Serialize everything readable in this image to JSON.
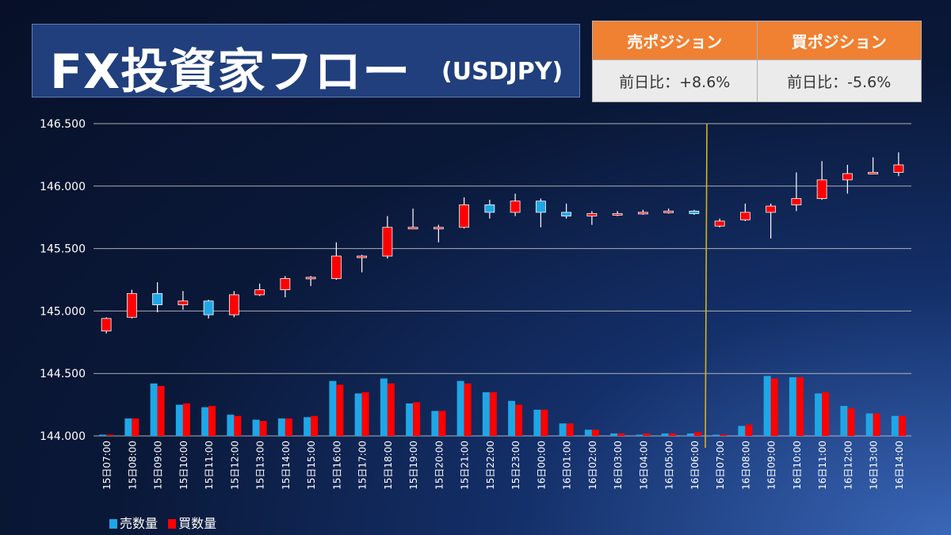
{
  "header": {
    "title": "FX投資家フロー",
    "pair": "(USDJPY)"
  },
  "positions": {
    "sell_label": "売ポジション",
    "sell_change": "前日比：+8.6%",
    "buy_label": "買ポジション",
    "buy_change": "前日比：-5.6%"
  },
  "colors": {
    "up": "#ff0000",
    "down": "#1ea7e6",
    "sell_volume": "#1ea7e6",
    "buy_volume": "#ff0000",
    "divider": "#d7b21c",
    "grid": "#c8c8c8",
    "position_header": "#f08032"
  },
  "chart_data": {
    "type": "candlestick",
    "ylim": [
      144.0,
      146.5
    ],
    "yticks": [
      "146.500",
      "146.000",
      "145.500",
      "145.000",
      "144.500",
      "144.000"
    ],
    "ytick_values": [
      146.5,
      146.0,
      145.5,
      145.0,
      144.5,
      144.0
    ],
    "grid": true,
    "legend_position": "bottom-left",
    "divider_after_category": "16日06:00",
    "categories": [
      "15日07:00",
      "15日08:00",
      "15日09:00",
      "15日10:00",
      "15日11:00",
      "15日12:00",
      "15日13:00",
      "15日14:00",
      "15日15:00",
      "15日16:00",
      "15日17:00",
      "15日18:00",
      "15日19:00",
      "15日20:00",
      "15日21:00",
      "15日22:00",
      "15日23:00",
      "16日00:00",
      "16日01:00",
      "16日02:00",
      "16日03:00",
      "16日04:00",
      "16日05:00",
      "16日06:00",
      "16日07:00",
      "16日08:00",
      "16日09:00",
      "16日10:00",
      "16日11:00",
      "16日12:00",
      "16日13:00",
      "16日14:00"
    ],
    "candles": [
      {
        "open": 144.84,
        "high": 144.95,
        "low": 144.82,
        "close": 144.94
      },
      {
        "open": 144.95,
        "high": 145.17,
        "low": 144.94,
        "close": 145.14
      },
      {
        "open": 145.14,
        "high": 145.23,
        "low": 144.99,
        "close": 145.05
      },
      {
        "open": 145.05,
        "high": 145.16,
        "low": 145.01,
        "close": 145.08
      },
      {
        "open": 145.08,
        "high": 145.09,
        "low": 144.94,
        "close": 144.97
      },
      {
        "open": 144.97,
        "high": 145.16,
        "low": 144.95,
        "close": 145.13
      },
      {
        "open": 145.13,
        "high": 145.22,
        "low": 145.12,
        "close": 145.17
      },
      {
        "open": 145.17,
        "high": 145.28,
        "low": 145.11,
        "close": 145.26
      },
      {
        "open": 145.26,
        "high": 145.28,
        "low": 145.2,
        "close": 145.27
      },
      {
        "open": 145.26,
        "high": 145.55,
        "low": 145.25,
        "close": 145.44
      },
      {
        "open": 145.44,
        "high": 145.45,
        "low": 145.31,
        "close": 145.44
      },
      {
        "open": 145.44,
        "high": 145.76,
        "low": 145.42,
        "close": 145.67
      },
      {
        "open": 145.67,
        "high": 145.82,
        "low": 145.66,
        "close": 145.67
      },
      {
        "open": 145.67,
        "high": 145.69,
        "low": 145.55,
        "close": 145.67
      },
      {
        "open": 145.67,
        "high": 145.91,
        "low": 145.66,
        "close": 145.85
      },
      {
        "open": 145.85,
        "high": 145.89,
        "low": 145.74,
        "close": 145.79
      },
      {
        "open": 145.79,
        "high": 145.94,
        "low": 145.76,
        "close": 145.88
      },
      {
        "open": 145.88,
        "high": 145.9,
        "low": 145.67,
        "close": 145.79
      },
      {
        "open": 145.79,
        "high": 145.86,
        "low": 145.74,
        "close": 145.76
      },
      {
        "open": 145.76,
        "high": 145.8,
        "low": 145.69,
        "close": 145.78
      },
      {
        "open": 145.78,
        "high": 145.8,
        "low": 145.76,
        "close": 145.78
      },
      {
        "open": 145.78,
        "high": 145.81,
        "low": 145.77,
        "close": 145.79
      },
      {
        "open": 145.79,
        "high": 145.82,
        "low": 145.78,
        "close": 145.8
      },
      {
        "open": 145.8,
        "high": 145.81,
        "low": 145.77,
        "close": 145.78
      },
      {
        "open": 145.68,
        "high": 145.74,
        "low": 145.67,
        "close": 145.72
      },
      {
        "open": 145.73,
        "high": 145.86,
        "low": 145.72,
        "close": 145.79
      },
      {
        "open": 145.79,
        "high": 145.86,
        "low": 145.58,
        "close": 145.84
      },
      {
        "open": 145.85,
        "high": 146.11,
        "low": 145.8,
        "close": 145.9
      },
      {
        "open": 145.9,
        "high": 146.2,
        "low": 145.89,
        "close": 146.05
      },
      {
        "open": 146.05,
        "high": 146.17,
        "low": 145.94,
        "close": 146.1
      },
      {
        "open": 146.1,
        "high": 146.23,
        "low": 146.1,
        "close": 146.11
      },
      {
        "open": 146.11,
        "high": 146.27,
        "low": 146.08,
        "close": 146.17
      }
    ],
    "series": [
      {
        "name": "売数量",
        "values": [
          0.01,
          0.14,
          0.42,
          0.25,
          0.23,
          0.17,
          0.13,
          0.14,
          0.15,
          0.44,
          0.34,
          0.46,
          0.26,
          0.2,
          0.44,
          0.35,
          0.28,
          0.21,
          0.1,
          0.05,
          0.02,
          0.01,
          0.02,
          0.02,
          0.01,
          0.08,
          0.48,
          0.47,
          0.34,
          0.24,
          0.18,
          0.16
        ]
      },
      {
        "name": "買数量",
        "values": [
          0.01,
          0.14,
          0.4,
          0.26,
          0.24,
          0.16,
          0.12,
          0.14,
          0.16,
          0.41,
          0.35,
          0.42,
          0.27,
          0.2,
          0.42,
          0.35,
          0.25,
          0.21,
          0.1,
          0.05,
          0.02,
          0.02,
          0.02,
          0.03,
          0.01,
          0.09,
          0.46,
          0.47,
          0.35,
          0.22,
          0.18,
          0.16
        ]
      }
    ]
  }
}
